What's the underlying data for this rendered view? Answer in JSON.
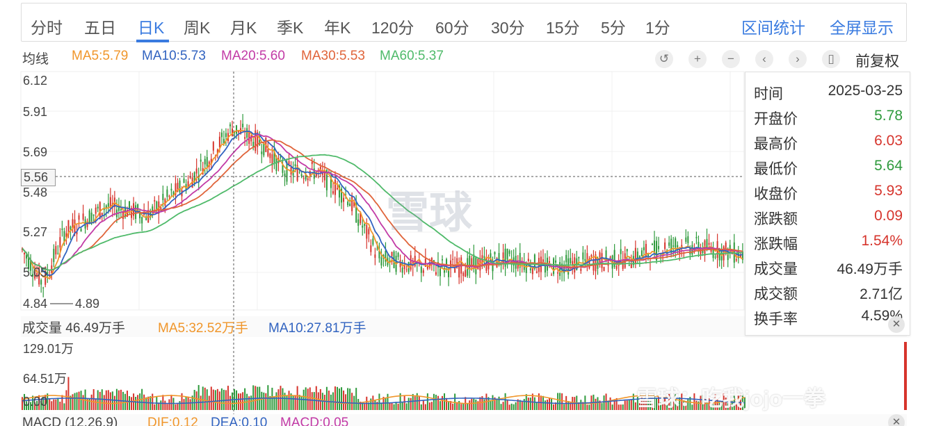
{
  "tabs": [
    {
      "label": "分时",
      "active": false
    },
    {
      "label": "五日",
      "active": false
    },
    {
      "label": "日K",
      "active": true
    },
    {
      "label": "周K",
      "active": false
    },
    {
      "label": "月K",
      "active": false
    },
    {
      "label": "季K",
      "active": false
    },
    {
      "label": "年K",
      "active": false
    },
    {
      "label": "120分",
      "active": false
    },
    {
      "label": "60分",
      "active": false
    },
    {
      "label": "30分",
      "active": false
    },
    {
      "label": "15分",
      "active": false
    },
    {
      "label": "5分",
      "active": false
    },
    {
      "label": "1分",
      "active": false
    }
  ],
  "tabs_right": {
    "interval_stats": "区间统计",
    "fullscreen": "全屏显示"
  },
  "ma_bar": {
    "label": "均线",
    "ma5": "MA5:5.79",
    "ma10": "MA10:5.73",
    "ma20": "MA20:5.60",
    "ma30": "MA30:5.53",
    "ma60": "MA60:5.37"
  },
  "controls": {
    "icons": [
      "undo-icon",
      "zoom-in-icon",
      "zoom-out-icon",
      "prev-icon",
      "next-icon",
      "candle-icon"
    ],
    "fuquan": "前复权"
  },
  "price_axis": {
    "labels": [
      "6.12",
      "5.91",
      "5.69",
      "5.48",
      "5.27",
      "5.05",
      "4.84"
    ],
    "current": "5.56",
    "low_marker": "4.89"
  },
  "tooltip": {
    "rows": [
      {
        "label": "时间",
        "value": "2025-03-25",
        "color": "#333333"
      },
      {
        "label": "开盘价",
        "value": "5.78",
        "color": "#2e9a3c"
      },
      {
        "label": "最高价",
        "value": "6.03",
        "color": "#d6342c"
      },
      {
        "label": "最低价",
        "value": "5.64",
        "color": "#2e9a3c"
      },
      {
        "label": "收盘价",
        "value": "5.93",
        "color": "#d6342c"
      },
      {
        "label": "涨跌额",
        "value": "0.09",
        "color": "#d6342c"
      },
      {
        "label": "涨跌幅",
        "value": "1.54%",
        "color": "#d6342c"
      },
      {
        "label": "成交量",
        "value": "46.49万手",
        "color": "#333333"
      },
      {
        "label": "成交额",
        "value": "2.71亿",
        "color": "#333333"
      },
      {
        "label": "换手率",
        "value": "4.59%",
        "color": "#333333"
      }
    ]
  },
  "volume": {
    "title": "成交量 46.49万手",
    "ma5": "MA5:32.52万手",
    "ma10": "MA10:27.81万手",
    "axis": [
      "129.01万",
      "64.51万",
      "0.00"
    ]
  },
  "macd": {
    "title": "MACD (12,26,9)",
    "dif": "DIF:0.12",
    "dea": "DEA:0.10",
    "macd": "MACD:0.05"
  },
  "watermark": {
    "center": "雪球",
    "bottom": "雪球：吃我jojo一拳"
  },
  "colors": {
    "up": "#d6342c",
    "down": "#2e9a3c",
    "accent": "#3a7be0",
    "ma5": "#f0962b",
    "ma10": "#3163c0",
    "ma20": "#c23aa6",
    "ma30": "#e0643a",
    "ma60": "#4fba6a"
  }
}
